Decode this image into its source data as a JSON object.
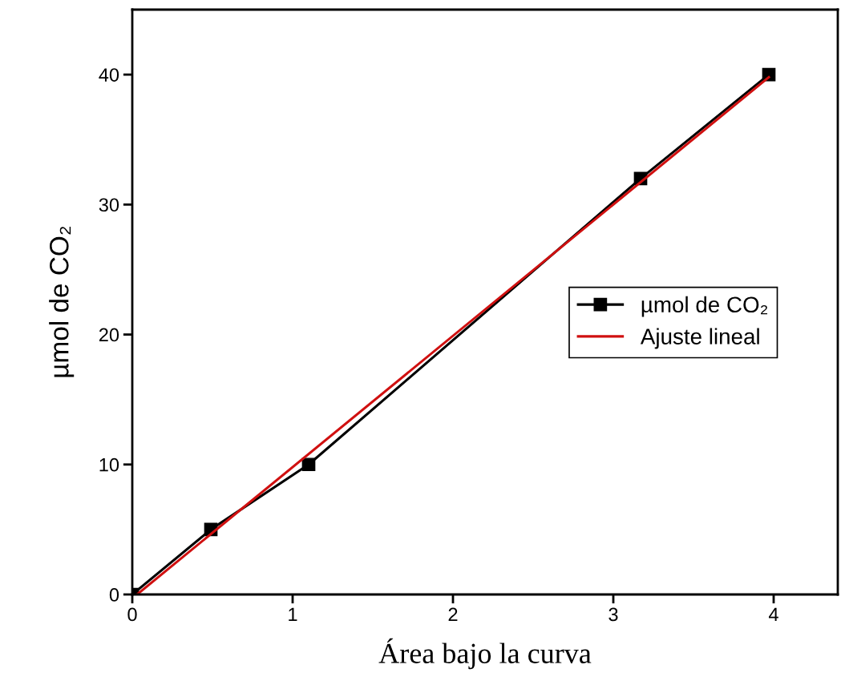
{
  "chart_data": {
    "type": "line",
    "xlabel": "Área bajo la curva",
    "ylabel": "µmol de CO₂",
    "xlim": [
      0,
      4.4
    ],
    "ylim": [
      0,
      45
    ],
    "xticks": [
      0,
      1,
      2,
      3,
      4
    ],
    "yticks": [
      0,
      10,
      20,
      30,
      40
    ],
    "grid": false,
    "legend": "right",
    "series": [
      {
        "name": "µmol de CO₂",
        "color": "#000000",
        "x": [
          0,
          0.49,
          1.1,
          3.17,
          3.97
        ],
        "values": [
          0,
          5,
          10,
          32,
          40
        ],
        "marker": "square"
      },
      {
        "name": "Ajuste lineal",
        "color": "#d01010",
        "x": [
          0.03,
          3.97
        ],
        "values": [
          0,
          39.8
        ],
        "marker": "none"
      }
    ]
  }
}
